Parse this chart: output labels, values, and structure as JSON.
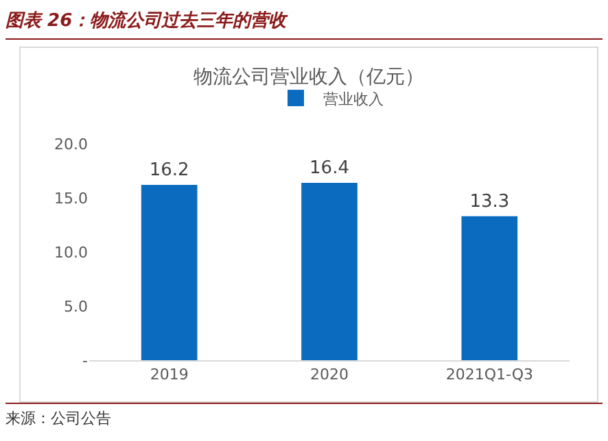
{
  "chart_data": {
    "type": "bar",
    "title": "图表 26：物流公司过去三年的营收",
    "subtitle": "物流公司营业收入（亿元）",
    "categories": [
      "2019",
      "2020",
      "2021Q1-Q3"
    ],
    "series": [
      {
        "name": "营业收入",
        "color": "#0b6cbf",
        "values": [
          16.2,
          16.4,
          13.3
        ]
      }
    ],
    "ylim": [
      0,
      20
    ],
    "yticks": [
      {
        "value": 0,
        "label": "-"
      },
      {
        "value": 5,
        "label": "5.0"
      },
      {
        "value": 10,
        "label": "10.0"
      },
      {
        "value": 15,
        "label": "15.0"
      },
      {
        "value": 20,
        "label": "20.0"
      }
    ],
    "data_labels": true,
    "grid": false,
    "legend": "top",
    "annotations": [
      "来源：公司公告"
    ]
  }
}
